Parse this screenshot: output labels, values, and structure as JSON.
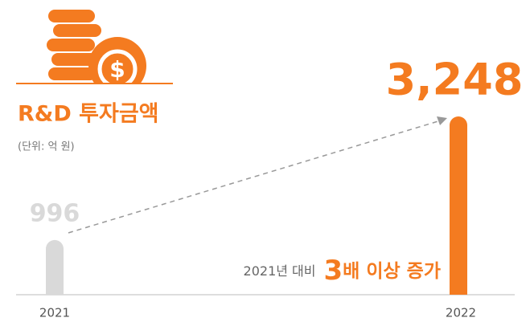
{
  "chart_data": {
    "type": "bar",
    "title": "R&D 투자금액",
    "subtitle": "(단위: 억 원)",
    "categories": [
      "2021",
      "2022"
    ],
    "values": [
      996,
      3248
    ],
    "value_labels": [
      "996",
      "3,248"
    ],
    "colors": [
      "#d9d9d9",
      "#f47b20"
    ],
    "annotation": {
      "prefix": "2021년 대비",
      "emphasis": "3",
      "suffix": "배 이상 증가"
    }
  }
}
